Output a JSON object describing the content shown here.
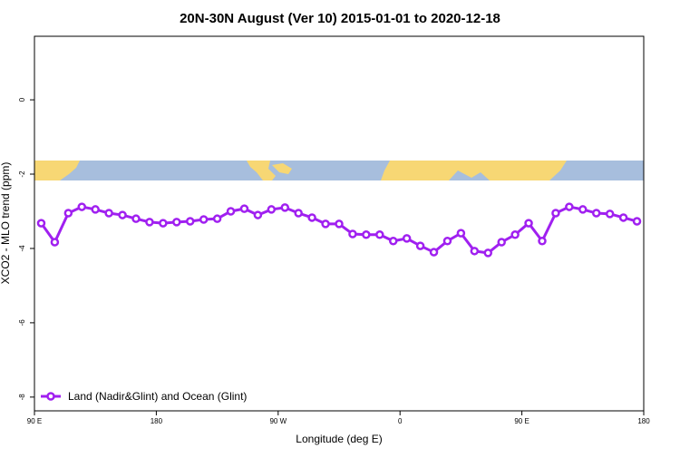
{
  "chart_data": {
    "type": "line",
    "title": "20N-30N August (Ver 10)   2015-01-01 to 2020-12-18",
    "x_label": "Longitude (deg E)",
    "y_label": "XCO2 - MLO trend (ppm)",
    "x": [
      95,
      105,
      115,
      125,
      135,
      145,
      155,
      165,
      175,
      185,
      195,
      205,
      215,
      225,
      235,
      245,
      255,
      265,
      275,
      285,
      295,
      305,
      315,
      325,
      335,
      345,
      355,
      365,
      375,
      385,
      395,
      405,
      415,
      425,
      435,
      445,
      455,
      465,
      475,
      485,
      495,
      505,
      515,
      525,
      535
    ],
    "series": [
      {
        "name": "Land (Nadir&Glint) and Ocean (Glint)",
        "color": "#a020f0",
        "values": [
          -3.32,
          -3.83,
          -3.05,
          -2.88,
          -2.95,
          -3.05,
          -3.1,
          -3.2,
          -3.29,
          -3.32,
          -3.29,
          -3.27,
          -3.22,
          -3.2,
          -3.0,
          -2.93,
          -3.1,
          -2.95,
          -2.9,
          -3.05,
          -3.17,
          -3.34,
          -3.34,
          -3.61,
          -3.63,
          -3.63,
          -3.8,
          -3.73,
          -3.93,
          -4.1,
          -3.8,
          -3.59,
          -4.07,
          -4.12,
          -3.83,
          -3.63,
          -3.32,
          -3.8,
          -3.05,
          -2.88,
          -2.95,
          -3.05,
          -3.07,
          -3.17,
          -3.27
        ]
      }
    ],
    "xlim": [
      90,
      540
    ],
    "xticks": [
      {
        "value": 90,
        "label": "90 E"
      },
      {
        "value": 180,
        "label": "180"
      },
      {
        "value": 270,
        "label": "90 W"
      },
      {
        "value": 360,
        "label": "0"
      },
      {
        "value": 450,
        "label": "90 E"
      },
      {
        "value": 540,
        "label": "180"
      }
    ],
    "ylim": [
      -8.37,
      1.71
    ],
    "yticks": [
      0,
      -2,
      -4,
      -6,
      -8
    ],
    "legend": "bottomleft"
  }
}
